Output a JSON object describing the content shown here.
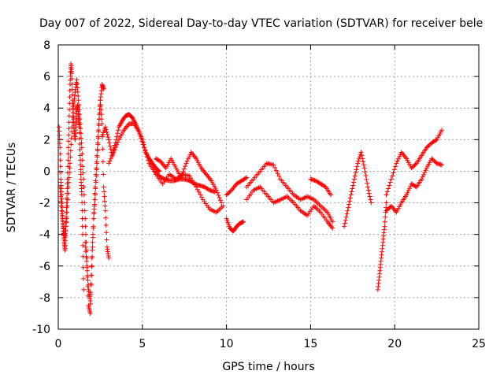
{
  "chart_data": {
    "type": "scatter",
    "title": "Day 007 of 2022, Sidereal Day-to-day VTEC variation (SDTVAR) for receiver bele",
    "xlabel": "GPS time / hours",
    "ylabel": "SDTVAR / TECUs",
    "xlim": [
      0,
      25
    ],
    "ylim": [
      -10,
      8
    ],
    "xticks": [
      0,
      5,
      10,
      15,
      20,
      25
    ],
    "xtick_labels": [
      "0",
      "5",
      "10",
      "15",
      "20",
      "25"
    ],
    "yticks": [
      -10,
      -8,
      -6,
      -4,
      -2,
      0,
      2,
      4,
      6,
      8
    ],
    "ytick_labels": [
      "-10",
      "-8",
      "-6",
      "-4",
      "-2",
      "0",
      "2",
      "4",
      "6",
      "8"
    ],
    "grid": true,
    "marker": "plus",
    "color": "#ff0000",
    "series": [
      {
        "name": "cluster-early-a",
        "x": [
          0.05,
          0.1,
          0.15,
          0.2,
          0.25,
          0.3,
          0.35,
          0.4,
          0.45,
          0.5,
          0.55,
          0.6,
          0.65,
          0.7,
          0.75,
          0.8,
          0.85,
          0.9,
          0.95,
          1.0,
          1.05,
          1.1,
          1.15,
          1.2,
          1.25,
          1.3,
          1.35,
          1.4,
          1.45,
          1.5
        ],
        "y": [
          2.8,
          1.5,
          -0.5,
          -1.5,
          -2.8,
          -3.8,
          -4.5,
          -5.0,
          -3.5,
          -2.0,
          -0.5,
          1.5,
          3.5,
          5.5,
          6.8,
          6.2,
          4.5,
          3.5,
          2.5,
          2.0,
          3.0,
          3.8,
          4.2,
          3.5,
          2.8,
          1.0,
          -0.5,
          -1.5,
          -4.0,
          -7.5
        ]
      },
      {
        "name": "cluster-early-b",
        "x": [
          0.1,
          0.2,
          0.3,
          0.4,
          0.5,
          0.6,
          0.7,
          0.8,
          0.9,
          1.0,
          1.1,
          1.2,
          1.3,
          1.4,
          1.5,
          1.6,
          1.7,
          1.8,
          1.9,
          2.0,
          2.1,
          2.2,
          2.3,
          2.4,
          2.5,
          2.6,
          2.7
        ],
        "y": [
          -1.0,
          -2.5,
          -3.5,
          -4.2,
          -3.0,
          -1.0,
          0.5,
          2.5,
          4.0,
          5.0,
          5.8,
          4.5,
          3.0,
          1.5,
          -0.5,
          -3.0,
          -5.5,
          -8.5,
          -9.0,
          -6.0,
          -3.0,
          -1.5,
          0.5,
          2.5,
          4.5,
          5.5,
          5.2
        ]
      },
      {
        "name": "cluster-early-c",
        "x": [
          1.6,
          1.7,
          1.8,
          1.9,
          2.0,
          2.1,
          2.2,
          2.3,
          2.4,
          2.5,
          2.6,
          2.7,
          2.8,
          2.9,
          3.0
        ],
        "y": [
          -4.5,
          -6.0,
          -7.5,
          -8.2,
          -5.5,
          -3.0,
          -1.0,
          1.0,
          3.0,
          4.5,
          3.0,
          -1.0,
          -2.5,
          -4.8,
          -5.5
        ]
      },
      {
        "name": "arc-4h",
        "x": [
          2.6,
          2.8,
          3.0,
          3.2,
          3.4,
          3.6,
          3.8,
          4.0,
          4.2,
          4.4,
          4.6,
          4.8,
          5.0,
          5.2,
          5.4,
          5.6,
          5.8,
          6.0
        ],
        "y": [
          2.2,
          2.8,
          2.0,
          1.0,
          1.8,
          2.8,
          3.2,
          3.5,
          3.6,
          3.4,
          3.0,
          2.5,
          2.0,
          1.2,
          0.8,
          0.5,
          0.2,
          0.0
        ]
      },
      {
        "name": "arc-4h-lower",
        "x": [
          3.0,
          3.3,
          3.6,
          3.9,
          4.2,
          4.5,
          4.8,
          5.1,
          5.4,
          5.7,
          6.0,
          6.3,
          6.6,
          6.9,
          7.2,
          7.5,
          7.8,
          8.1,
          8.4,
          8.7,
          9.0,
          9.3
        ],
        "y": [
          0.5,
          1.2,
          2.0,
          2.6,
          3.0,
          3.0,
          2.5,
          1.5,
          0.5,
          0.0,
          -0.3,
          -0.5,
          -0.6,
          -0.6,
          -0.5,
          -0.5,
          -0.6,
          -0.8,
          -0.9,
          -1.0,
          -1.2,
          -1.3
        ]
      },
      {
        "name": "band-6-10h-upper",
        "x": [
          5.8,
          6.1,
          6.4,
          6.7,
          7.0,
          7.3,
          7.6,
          7.9,
          8.2,
          8.5,
          8.8,
          9.1,
          9.4,
          9.7
        ],
        "y": [
          0.8,
          0.6,
          0.2,
          0.8,
          0.2,
          -0.4,
          0.5,
          1.2,
          0.8,
          0.2,
          -0.2,
          -0.6,
          -1.2,
          -2.0
        ]
      },
      {
        "name": "band-6-10h-lower",
        "x": [
          5.8,
          6.2,
          6.6,
          7.0,
          7.4,
          7.8,
          8.2,
          8.6,
          9.0,
          9.4,
          9.8
        ],
        "y": [
          -0.2,
          -0.8,
          -0.2,
          -0.5,
          -0.2,
          -0.3,
          -1.0,
          -1.8,
          -2.4,
          -2.6,
          -2.2
        ]
      },
      {
        "name": "segment-10h",
        "x": [
          10.0,
          10.2,
          10.4,
          10.6,
          10.8,
          11.0
        ],
        "y": [
          -3.0,
          -3.6,
          -3.8,
          -3.5,
          -3.3,
          -3.2
        ]
      },
      {
        "name": "segment-10-11h",
        "x": [
          10.0,
          10.3,
          10.6,
          10.9,
          11.2
        ],
        "y": [
          -1.5,
          -1.2,
          -0.8,
          -0.6,
          -0.4
        ]
      },
      {
        "name": "band-11-16h-upper",
        "x": [
          11.2,
          11.6,
          12.0,
          12.4,
          12.8,
          13.2,
          13.6,
          14.0,
          14.4,
          14.8,
          15.2,
          15.6,
          16.0,
          16.3
        ],
        "y": [
          -1.0,
          -0.5,
          0.0,
          0.5,
          0.4,
          -0.5,
          -1.0,
          -1.5,
          -1.8,
          -1.6,
          -1.8,
          -2.2,
          -2.6,
          -3.2
        ]
      },
      {
        "name": "band-11-16h-lower",
        "x": [
          11.2,
          11.6,
          12.0,
          12.4,
          12.8,
          13.2,
          13.6,
          14.0,
          14.4,
          14.8,
          15.2,
          15.6,
          16.0,
          16.3
        ],
        "y": [
          -1.8,
          -1.2,
          -1.0,
          -1.5,
          -2.0,
          -1.8,
          -1.6,
          -2.0,
          -2.5,
          -2.8,
          -2.2,
          -2.6,
          -3.2,
          -3.6
        ]
      },
      {
        "name": "segment-15-16h",
        "x": [
          15.0,
          15.3,
          15.6,
          15.9,
          16.2
        ],
        "y": [
          -0.5,
          -0.6,
          -0.8,
          -1.0,
          -1.5
        ]
      },
      {
        "name": "cluster-17-18h",
        "x": [
          17.0,
          17.2,
          17.4,
          17.6,
          17.8,
          18.0,
          18.2,
          18.4,
          18.6
        ],
        "y": [
          -3.5,
          -2.5,
          -1.5,
          -0.5,
          0.5,
          1.2,
          0.2,
          -1.0,
          -2.0
        ]
      },
      {
        "name": "cluster-19h",
        "x": [
          19.0,
          19.1,
          19.2,
          19.3,
          19.4,
          19.5
        ],
        "y": [
          -7.5,
          -6.5,
          -5.5,
          -4.5,
          -3.5,
          -2.0
        ]
      },
      {
        "name": "band-19-23h-upper",
        "x": [
          19.5,
          19.8,
          20.1,
          20.4,
          20.7,
          21.0,
          21.3,
          21.6,
          21.9,
          22.2,
          22.5,
          22.8
        ],
        "y": [
          -1.5,
          -0.5,
          0.5,
          1.2,
          0.8,
          0.2,
          0.5,
          1.0,
          1.5,
          1.8,
          2.0,
          2.6
        ]
      },
      {
        "name": "band-19-23h-lower",
        "x": [
          19.5,
          19.8,
          20.1,
          20.4,
          20.7,
          21.0,
          21.3,
          21.6,
          21.9,
          22.2,
          22.5,
          22.8
        ],
        "y": [
          -2.5,
          -2.2,
          -2.6,
          -2.0,
          -1.5,
          -0.8,
          -1.0,
          -0.5,
          0.2,
          0.8,
          0.5,
          0.4
        ]
      }
    ]
  }
}
